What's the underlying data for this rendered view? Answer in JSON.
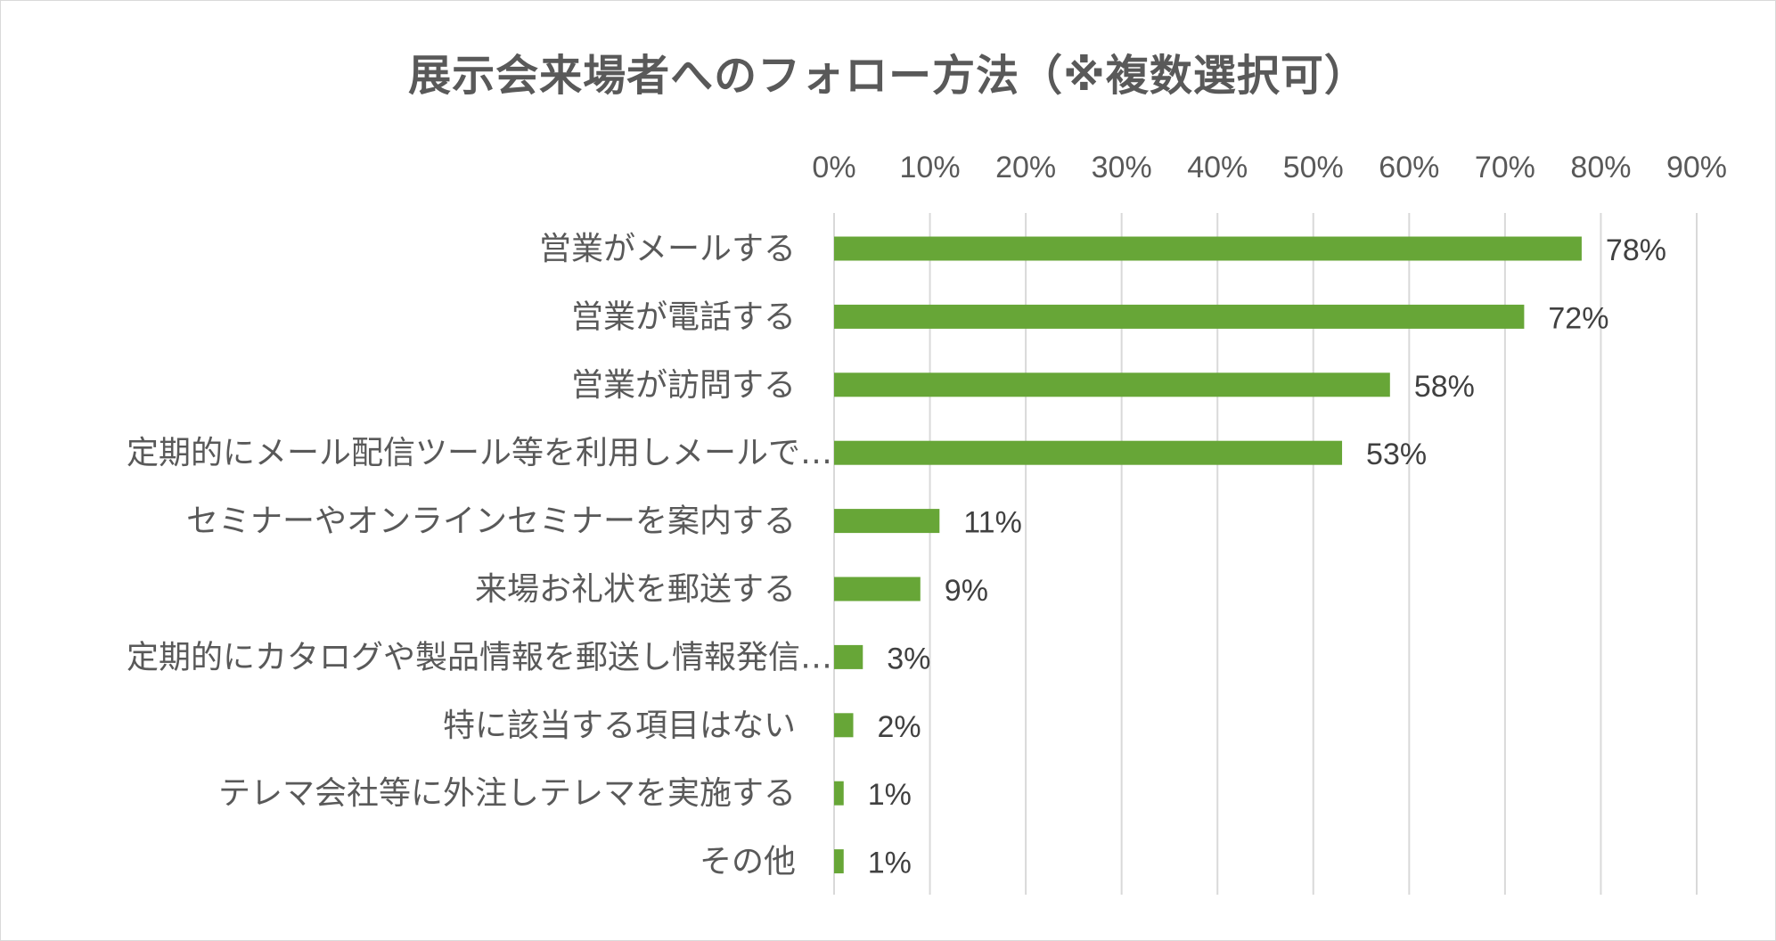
{
  "chart_data": {
    "type": "bar",
    "orientation": "horizontal",
    "title": "展示会来場者へのフォロー方法（※複数選択可）",
    "categories": [
      "営業がメールする",
      "営業が電話する",
      "営業が訪問する",
      "定期的にメール配信ツール等を利用しメールで…",
      "セミナーやオンラインセミナーを案内する",
      "来場お礼状を郵送する",
      "定期的にカタログや製品情報を郵送し情報発信…",
      "特に該当する項目はない",
      "テレマ会社等に外注しテレマを実施する",
      "その他"
    ],
    "values": [
      78,
      72,
      58,
      53,
      11,
      9,
      3,
      2,
      1,
      1
    ],
    "data_labels": [
      "78%",
      "72%",
      "58%",
      "53%",
      "11%",
      "9%",
      "3%",
      "2%",
      "1%",
      "1%"
    ],
    "xlim": [
      0,
      90
    ],
    "xticks": [
      0,
      10,
      20,
      30,
      40,
      50,
      60,
      70,
      80,
      90
    ],
    "xtick_labels": [
      "0%",
      "10%",
      "20%",
      "30%",
      "40%",
      "50%",
      "60%",
      "70%",
      "80%",
      "90%"
    ],
    "x_axis_position": "top",
    "grid": "vertical",
    "legend": "none",
    "colors": {
      "bar": "#67a637",
      "grid": "#d9d9d9",
      "text": "#595959"
    }
  }
}
